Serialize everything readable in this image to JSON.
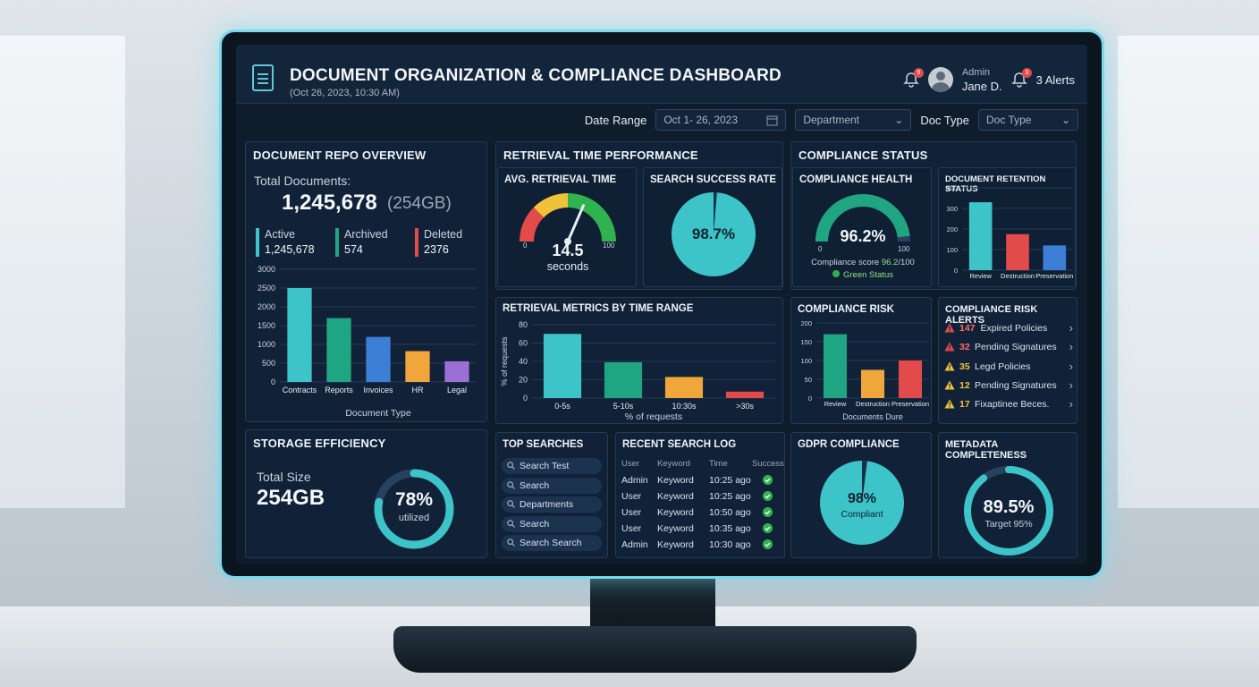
{
  "header": {
    "title": "DOCUMENT ORGANIZATION & COMPLIANCE DASHBOARD",
    "subtitle": "(Oct 26, 2023, 10:30 AM)",
    "notif_count": "9",
    "user_role": "Admin",
    "user_name": "Jane D.",
    "alerts_count": "3",
    "alerts_label": "3 Alerts"
  },
  "filters": {
    "date_label": "Date Range",
    "date_value": "Oct 1- 26, 2023",
    "department_value": "Department",
    "doctype_label": "Doc Type",
    "doctype_value": "Doc Type"
  },
  "repo": {
    "title": "DOCUMENT REPO OVERVIEW",
    "total_label": "Total Documents:",
    "total_value": "1,245,678",
    "total_size": "(254GB)",
    "active_label": "Active",
    "active_value": "1,245,678",
    "archived_label": "Archived",
    "archived_value": "574",
    "deleted_label": "Deleted",
    "deleted_value": "2376",
    "chart_xlabel": "Document Type"
  },
  "retrieval": {
    "title": "RETRIEVAL TIME PERFORMANCE",
    "avg_title": "AVG. RETRIEVAL TIME",
    "avg_value": "14.5",
    "avg_unit": "seconds",
    "gauge_min": "0",
    "gauge_max": "100",
    "success_title": "SEARCH SUCCESS RATE",
    "success_value": "98.7%",
    "metrics_title": "RETRIEVAL METRICS BY TIME RANGE",
    "metrics_ylabel": "% of requests",
    "metrics_xlabel": "% of requests"
  },
  "compliance": {
    "title": "COMPLIANCE STATUS",
    "health_title": "COMPLIANCE HEALTH",
    "health_value": "96.2%",
    "health_min": "0",
    "health_max": "100",
    "score_text": "Compliance score",
    "score_value": "96.2",
    "score_suffix": "/100",
    "status_text": "Green Status",
    "retention_title": "DOCUMENT RETENTION STATUS",
    "risk_title": "COMPLIANCE RISK",
    "risk_xlabel": "Documents Dure",
    "alerts_title": "COMPLIANCE RISK ALERTS",
    "alerts": [
      {
        "num": "147",
        "label": "Expired Policies"
      },
      {
        "num": "32",
        "label": "Pending Signatures"
      },
      {
        "num": "35",
        "label": "Legd Policies"
      },
      {
        "num": "12",
        "label": "Pending Signatures"
      },
      {
        "num": "17",
        "label": "Fixaptinee Beces."
      }
    ]
  },
  "storage": {
    "title": "STORAGE EFFICIENCY",
    "total_label": "Total Size",
    "total_value": "254GB",
    "util_value": "78%",
    "util_label": "utilized"
  },
  "top_searches": {
    "title": "TOP SEARCHES",
    "items": [
      "Search Test",
      "Search",
      "Departments",
      "Search",
      "Search Search"
    ]
  },
  "search_log": {
    "title": "RECENT SEARCH LOG",
    "columns": [
      "User",
      "Keyword",
      "Time",
      "Success"
    ],
    "rows": [
      [
        "Admin",
        "Keyword",
        "10:25 ago"
      ],
      [
        "User",
        "Keyword",
        "10:25 ago"
      ],
      [
        "User",
        "Keyword",
        "10:50 ago"
      ],
      [
        "User",
        "Keyword",
        "10:35 ago"
      ],
      [
        "Admin",
        "Keyword",
        "10:30 ago"
      ]
    ]
  },
  "gdpr": {
    "title": "GDPR COMPLIANCE",
    "value": "98%",
    "label": "Compliant"
  },
  "metadata": {
    "title": "METADATA COMPLETENESS",
    "value": "89.5%",
    "target": "Target 95%"
  },
  "colors": {
    "teal": "#3cc4c8",
    "green": "#1fa582",
    "blue": "#3d7fd6",
    "orange": "#f0a63a",
    "purple": "#9b6fd6",
    "red": "#e34b4b"
  },
  "chart_data": [
    {
      "id": "doc_type",
      "type": "bar",
      "categories": [
        "Contracts",
        "Reports",
        "Invoices",
        "HR",
        "Legal"
      ],
      "values": [
        2500,
        1700,
        1200,
        820,
        550
      ],
      "ylim": [
        0,
        3000
      ],
      "yticks": [
        0,
        500,
        1000,
        1500,
        2000,
        2500,
        3000
      ],
      "xlabel": "Document Type",
      "colors": [
        "#3cc4c8",
        "#1fa582",
        "#3d7fd6",
        "#f0a63a",
        "#9b6fd6"
      ]
    },
    {
      "id": "time_range",
      "type": "bar",
      "categories": [
        "0-5s",
        "5-10s",
        "10:30s",
        ">30s"
      ],
      "values": [
        70,
        39,
        23,
        7
      ],
      "ylim": [
        0,
        80
      ],
      "yticks": [
        0,
        20,
        40,
        60,
        80
      ],
      "xlabel": "% of requests",
      "ylabel": "% of requests",
      "colors": [
        "#3cc4c8",
        "#1fa582",
        "#f0a63a",
        "#e34b4b"
      ]
    },
    {
      "id": "retention",
      "type": "bar",
      "categories": [
        "Review",
        "Destruction",
        "Preservation"
      ],
      "values": [
        330,
        175,
        120
      ],
      "ylim": [
        0,
        400
      ],
      "yticks": [
        0,
        100,
        200,
        300,
        400
      ],
      "colors": [
        "#3cc4c8",
        "#e34b4b",
        "#3d7fd6"
      ]
    },
    {
      "id": "risk",
      "type": "bar",
      "categories": [
        "Review",
        "Destruction",
        "Preservation"
      ],
      "values": [
        170,
        75,
        100
      ],
      "ylim": [
        0,
        200
      ],
      "yticks": [
        0,
        50,
        100,
        150,
        200
      ],
      "xlabel": "Documents Dure",
      "colors": [
        "#1fa582",
        "#f0a63a",
        "#e34b4b"
      ]
    },
    {
      "id": "success_rate",
      "type": "pie",
      "values": [
        98.7,
        1.3
      ]
    },
    {
      "id": "gdpr",
      "type": "pie",
      "values": [
        98,
        2
      ]
    },
    {
      "id": "avg_retrieval_gauge",
      "type": "gauge",
      "value": 14.5,
      "range": [
        0,
        100
      ]
    },
    {
      "id": "health_gauge",
      "type": "gauge",
      "value": 96.2,
      "range": [
        0,
        100
      ]
    },
    {
      "id": "storage_ring",
      "type": "ring",
      "value": 78
    },
    {
      "id": "metadata_ring",
      "type": "ring",
      "value": 89.5
    }
  ]
}
